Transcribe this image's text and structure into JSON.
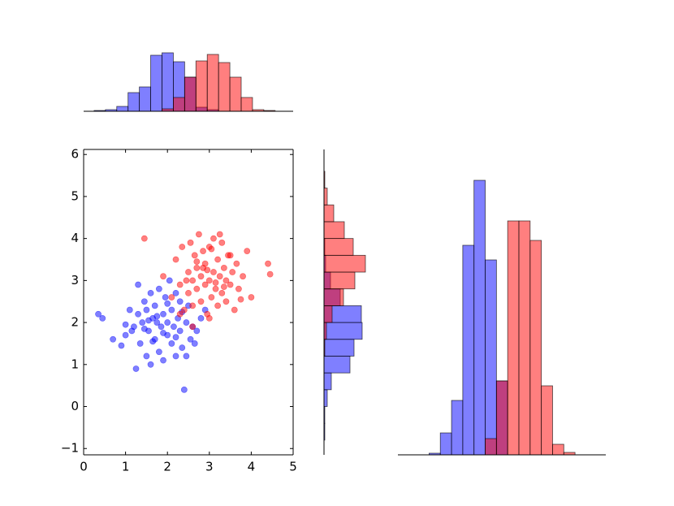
{
  "chart_data": [
    {
      "type": "scatter",
      "xlim": [
        0,
        5
      ],
      "ylim": [
        -1.15,
        6.12
      ],
      "xticks": [
        0,
        1,
        2,
        3,
        4,
        5
      ],
      "yticks": [
        {
          "value": -1,
          "label": "−1"
        },
        0,
        1,
        2,
        3,
        4,
        5,
        6
      ],
      "spines": [
        "left",
        "right",
        "top",
        "bottom"
      ],
      "series": [
        {
          "color": "#0000ff",
          "x": [
            0.35,
            0.45,
            0.7,
            0.9,
            1.0,
            1.1,
            1.2,
            1.25,
            1.3,
            1.35,
            1.4,
            1.45,
            1.5,
            1.5,
            1.55,
            1.6,
            1.6,
            1.65,
            1.7,
            1.7,
            1.75,
            1.8,
            1.8,
            1.85,
            1.9,
            1.9,
            1.95,
            2.0,
            2.0,
            2.05,
            2.1,
            2.1,
            2.15,
            2.2,
            2.2,
            2.25,
            2.3,
            2.3,
            2.35,
            2.4,
            2.45,
            2.5,
            2.55,
            2.6,
            2.7,
            2.8,
            2.9,
            1.3,
            1.65,
            2.45,
            1.15,
            1.9,
            2.0,
            2.2,
            1.55,
            1.75,
            2.65,
            1.45,
            2.35,
            1.0
          ],
          "values": [
            2.2,
            2.1,
            1.6,
            1.45,
            1.7,
            2.3,
            1.9,
            0.9,
            2.9,
            1.5,
            2.0,
            2.5,
            1.2,
            2.3,
            1.8,
            2.7,
            1.0,
            2.1,
            1.6,
            2.4,
            2.0,
            1.3,
            2.8,
            1.9,
            2.2,
            1.1,
            2.6,
            1.7,
            2.0,
            3.0,
            1.5,
            2.3,
            1.9,
            2.7,
            1.2,
            2.1,
            1.8,
            2.5,
            1.4,
            0.4,
            2.0,
            2.4,
            1.6,
            1.9,
            1.8,
            2.1,
            2.3,
            2.2,
            1.55,
            1.2,
            1.8,
            1.75,
            2.45,
            1.65,
            2.05,
            2.15,
            1.5,
            1.85,
            2.25,
            1.95
          ]
        },
        {
          "color": "#ff0000",
          "x": [
            1.45,
            1.9,
            2.1,
            2.2,
            2.3,
            2.35,
            2.4,
            2.5,
            2.5,
            2.55,
            2.6,
            2.6,
            2.65,
            2.7,
            2.7,
            2.75,
            2.8,
            2.8,
            2.85,
            2.9,
            2.9,
            2.95,
            3.0,
            3.0,
            3.05,
            3.1,
            3.1,
            3.15,
            3.2,
            3.2,
            3.25,
            3.3,
            3.3,
            3.35,
            3.4,
            3.4,
            3.45,
            3.5,
            3.55,
            3.6,
            3.65,
            3.7,
            3.8,
            3.9,
            4.0,
            4.4,
            4.45,
            2.3,
            2.6,
            3.0,
            3.25,
            3.5,
            2.85,
            3.15,
            2.7,
            3.75,
            2.45,
            3.05,
            3.35,
            2.95
          ],
          "values": [
            4.0,
            3.1,
            2.6,
            3.5,
            2.9,
            3.8,
            2.3,
            3.2,
            2.7,
            3.9,
            3.0,
            2.4,
            3.6,
            2.8,
            3.3,
            4.1,
            2.5,
            3.1,
            3.7,
            2.9,
            3.4,
            2.2,
            3.0,
            3.8,
            2.6,
            3.2,
            4.0,
            2.8,
            3.5,
            2.4,
            3.1,
            2.7,
            3.9,
            3.3,
            2.5,
            3.0,
            3.6,
            2.9,
            3.2,
            2.3,
            3.4,
            2.8,
            3.1,
            3.7,
            2.6,
            3.4,
            3.15,
            2.2,
            1.9,
            2.1,
            4.1,
            3.6,
            3.3,
            2.95,
            3.45,
            2.55,
            3.0,
            3.75,
            2.85,
            3.25
          ]
        }
      ]
    },
    {
      "type": "histogram",
      "orientation": "vertical",
      "xlim": [
        0,
        5
      ],
      "ylim": [
        0,
        75
      ],
      "spines": [
        "bottom"
      ],
      "bins": [
        0.25,
        0.52,
        0.79,
        1.06,
        1.33,
        1.6,
        1.87,
        2.14,
        2.41,
        2.68,
        2.95,
        3.22,
        3.49,
        3.76,
        4.03,
        4.3,
        4.57
      ],
      "series": [
        {
          "color": "#0000ff",
          "values": [
            1,
            2,
            6,
            23,
            30,
            69,
            72,
            61,
            42,
            5,
            2,
            0,
            0,
            0,
            0,
            0
          ]
        },
        {
          "color": "#ff0000",
          "values": [
            0,
            0,
            0,
            0,
            0,
            0,
            3,
            17,
            42,
            62,
            70,
            60,
            42,
            17,
            2,
            1
          ]
        }
      ]
    },
    {
      "type": "histogram",
      "orientation": "horizontal",
      "xlim": [
        0,
        60
      ],
      "ylim": [
        -1.15,
        6.12
      ],
      "spines": [
        "left"
      ],
      "bins": [
        -0.8,
        -0.4,
        0,
        0.4,
        0.8,
        1.2,
        1.6,
        2.0,
        2.4,
        2.8,
        3.2,
        3.6,
        4.0,
        4.4,
        4.8,
        5.2,
        5.6
      ],
      "series": [
        {
          "color": "#0000ff",
          "values": [
            1,
            1,
            4,
            9,
            32,
            37,
            47,
            46,
            20,
            8,
            2,
            1,
            0,
            0,
            0,
            0
          ]
        },
        {
          "color": "#ff0000",
          "values": [
            0,
            0,
            0,
            0,
            0,
            1,
            3,
            10,
            24,
            38,
            51,
            36,
            25,
            12,
            4,
            1
          ]
        }
      ]
    },
    {
      "type": "histogram",
      "orientation": "vertical",
      "xlim": [
        0,
        5
      ],
      "ylim": [
        0,
        340
      ],
      "spines": [
        "bottom"
      ],
      "bins": [
        0.75,
        1.02,
        1.29,
        1.56,
        1.83,
        2.1,
        2.37,
        2.64,
        2.91,
        3.18,
        3.45,
        3.72,
        3.99,
        4.26
      ],
      "series": [
        {
          "color": "#0000ff",
          "values": [
            2,
            27,
            67,
            258,
            338,
            240,
            91,
            0,
            0,
            0,
            0,
            0,
            0
          ]
        },
        {
          "color": "#ff0000",
          "values": [
            0,
            0,
            0,
            0,
            0,
            20,
            91,
            288,
            288,
            264,
            85,
            13,
            3
          ]
        }
      ]
    }
  ]
}
